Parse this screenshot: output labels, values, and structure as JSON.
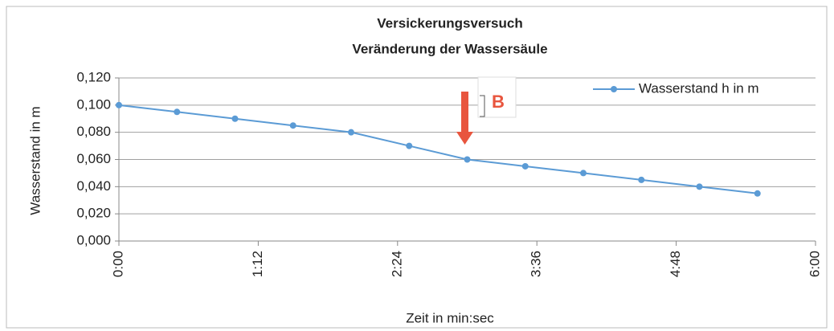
{
  "chart_data": {
    "type": "line",
    "title": "Versickerungsversuch",
    "subtitle": "Veränderung der Wassersäule",
    "x_label": "Zeit in min:sec",
    "y_label": "Wasserstand in m",
    "x": [
      0,
      30,
      60,
      90,
      120,
      150,
      180,
      210,
      240,
      270,
      300,
      330
    ],
    "series": [
      {
        "name": "Wasserstand h in m",
        "color": "#5b9bd5",
        "values": [
          0.1,
          0.095,
          0.09,
          0.085,
          0.08,
          0.07,
          0.06,
          0.055,
          0.05,
          0.045,
          0.04,
          0.035
        ]
      }
    ],
    "xlim": [
      0,
      360
    ],
    "xticks": [
      {
        "value": 0,
        "label": "0:00"
      },
      {
        "value": 72,
        "label": "1:12"
      },
      {
        "value": 144,
        "label": "2:24"
      },
      {
        "value": 216,
        "label": "3:36"
      },
      {
        "value": 288,
        "label": "4:48"
      },
      {
        "value": 360,
        "label": "6:00"
      }
    ],
    "ylim": [
      0,
      0.12
    ],
    "yticks": [
      {
        "value": 0,
        "label": "0,000"
      },
      {
        "value": 0.02,
        "label": "0,020"
      },
      {
        "value": 0.04,
        "label": "0,040"
      },
      {
        "value": 0.06,
        "label": "0,060"
      },
      {
        "value": 0.08,
        "label": "0,080"
      },
      {
        "value": 0.1,
        "label": "0,100"
      },
      {
        "value": 0.12,
        "label": "0,120"
      }
    ],
    "grid": true,
    "legend": "upper right",
    "annotation": "B"
  }
}
